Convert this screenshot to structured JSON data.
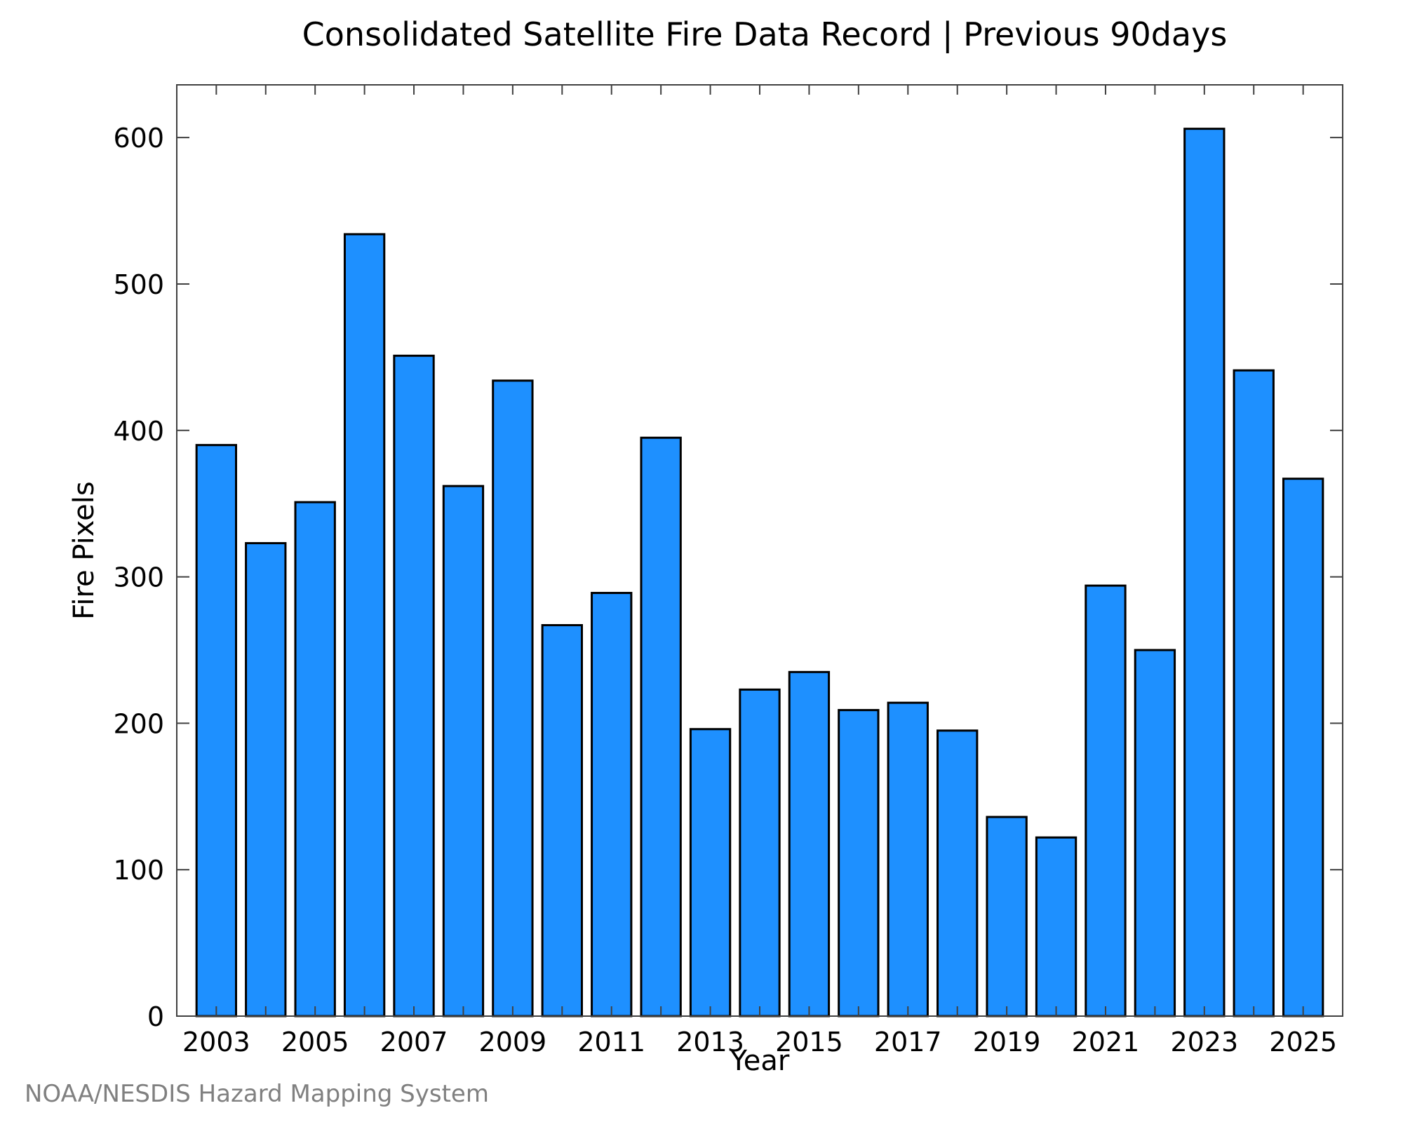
{
  "chart_data": {
    "type": "bar",
    "title": "Consolidated Satellite Fire Data Record | Previous 90days",
    "xlabel": "Year",
    "ylabel": "Fire Pixels",
    "categories": [
      "2003",
      "2004",
      "2005",
      "2006",
      "2007",
      "2008",
      "2009",
      "2010",
      "2011",
      "2012",
      "2013",
      "2014",
      "2015",
      "2016",
      "2017",
      "2018",
      "2019",
      "2020",
      "2021",
      "2022",
      "2023",
      "2024",
      "2025"
    ],
    "values": [
      390,
      323,
      351,
      534,
      451,
      362,
      434,
      267,
      289,
      395,
      196,
      223,
      235,
      209,
      214,
      195,
      136,
      122,
      294,
      250,
      606,
      441,
      367
    ],
    "x_tick_labels": [
      "2003",
      "2005",
      "2007",
      "2009",
      "2011",
      "2013",
      "2015",
      "2017",
      "2019",
      "2021",
      "2023",
      "2025"
    ],
    "y_tick_labels": [
      "0",
      "100",
      "200",
      "300",
      "400",
      "500",
      "600"
    ],
    "ylim": [
      0,
      636
    ],
    "grid": false,
    "legend": "none",
    "bar_color": "#1e90ff",
    "bar_edge_color": "#000000"
  },
  "footer": {
    "credit": "NOAA/NESDIS Hazard Mapping System"
  }
}
